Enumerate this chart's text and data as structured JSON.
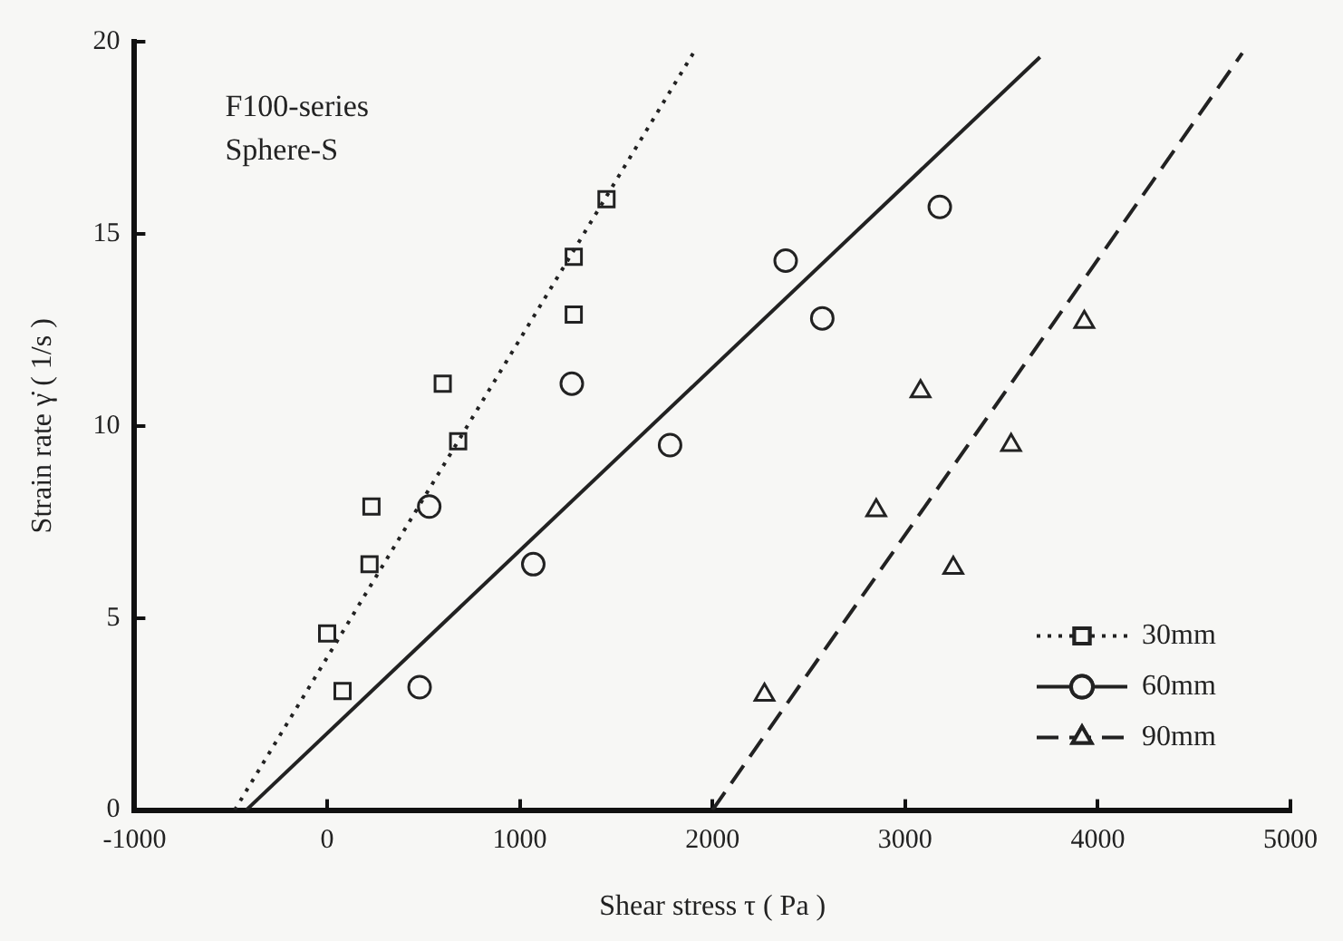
{
  "chart_data": {
    "type": "scatter",
    "xlabel": "Shear stress τ ( Pa )",
    "ylabel": "Strain rate γ̇ ( 1/s )",
    "annotations": [
      "F100-series",
      "Sphere-S"
    ],
    "xlim": [
      -1000,
      5000
    ],
    "xticks": [
      -1000,
      0,
      1000,
      2000,
      3000,
      4000,
      5000
    ],
    "ylim": [
      0,
      20
    ],
    "yticks": [
      0,
      5,
      10,
      15,
      20
    ],
    "grid": false,
    "legend": "bottom right",
    "series": [
      {
        "name": "30mm",
        "type": "scatter",
        "marker": "square",
        "color": "#222222",
        "x": [
          0,
          80,
          220,
          230,
          600,
          680,
          1280,
          1280,
          1450
        ],
        "values": [
          4.6,
          3.1,
          6.4,
          7.9,
          11.1,
          9.6,
          12.9,
          14.4,
          15.9
        ]
      },
      {
        "type": "line",
        "line_style": "dotted",
        "marker": "none",
        "color": "#222222",
        "x": [
          -480,
          1900
        ],
        "values": [
          0,
          19.7
        ]
      },
      {
        "name": "60mm",
        "type": "scatter",
        "marker": "circle",
        "color": "#222222",
        "x": [
          480,
          530,
          1070,
          1270,
          1780,
          2380,
          2570,
          3180
        ],
        "values": [
          3.2,
          7.9,
          6.4,
          11.1,
          9.5,
          14.3,
          12.8,
          15.7
        ]
      },
      {
        "type": "line",
        "line_style": "solid",
        "marker": "none",
        "color": "#222222",
        "x": [
          -420,
          3700
        ],
        "values": [
          0,
          19.6
        ]
      },
      {
        "name": "90mm",
        "type": "scatter",
        "marker": "triangle",
        "color": "#222222",
        "x": [
          2270,
          2850,
          3080,
          3250,
          3550,
          3930
        ],
        "values": [
          3.0,
          7.8,
          10.9,
          6.3,
          9.5,
          12.7
        ]
      },
      {
        "type": "line",
        "line_style": "dashed",
        "marker": "none",
        "color": "#222222",
        "x": [
          2000,
          4750
        ],
        "values": [
          0,
          19.7
        ]
      }
    ]
  }
}
